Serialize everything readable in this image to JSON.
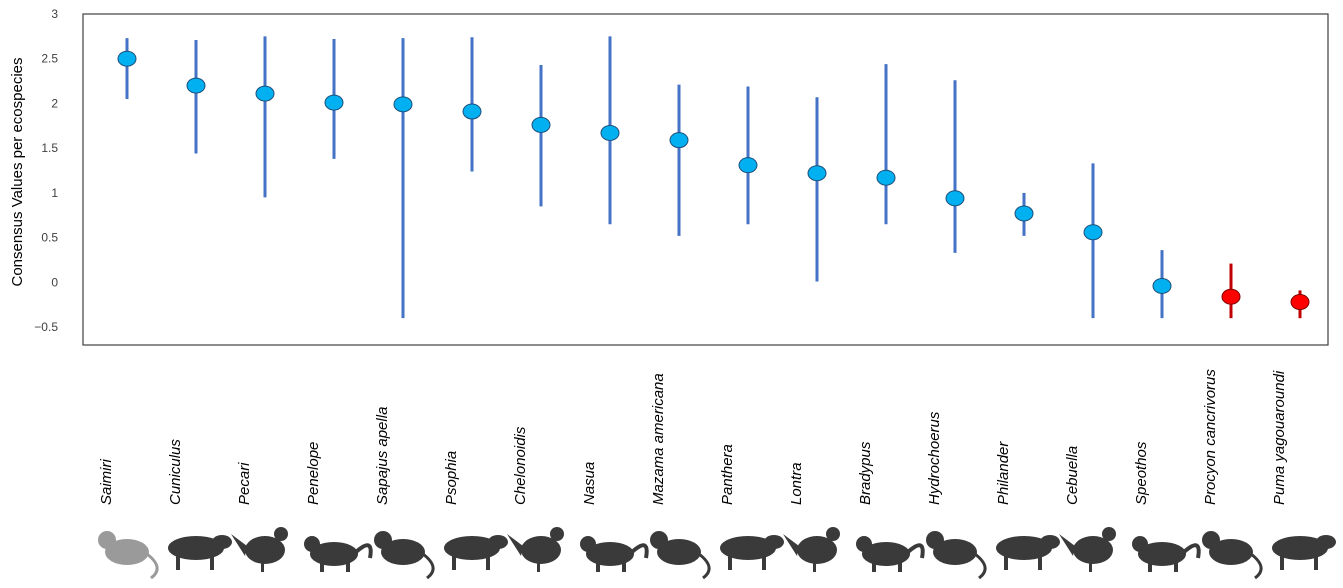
{
  "chart_data": {
    "type": "scatter",
    "title": "",
    "xlabel": "",
    "ylabel": "Consensus Values per ecospecies",
    "ylim": [
      -0.7,
      3
    ],
    "yticks": [
      3,
      2.5,
      2,
      1.5,
      1,
      0.5,
      0,
      -0.5
    ],
    "ytick_labels": [
      "3",
      "2.5",
      "2",
      "1.5",
      "1",
      "0.5",
      "0",
      "−0.5"
    ],
    "grid": false,
    "colors": {
      "default_marker": "#00B0F0",
      "default_bar": "#4472C4",
      "highlight_marker": "#FF0000",
      "highlight_bar": "#C00000",
      "marker_stroke": "#1F4E79"
    },
    "categories": [
      "Saimiri",
      "Cuniculus",
      "Pecari",
      "Penelope",
      "Sapajus apella",
      "Psophia",
      "Chelonoidis",
      "Nasua",
      "Mazama americana",
      "Panthera",
      "Lontra",
      "Bradypus",
      "Hydrochoerus",
      "Philander",
      "Cebuella",
      "Speothos",
      "Procyon cancrivorus",
      "Puma yagouaroundi"
    ],
    "series": [
      {
        "values": [
          2.5,
          2.2,
          2.11,
          2.01,
          1.99,
          1.91,
          1.76,
          1.67,
          1.59,
          1.31,
          1.22,
          1.17,
          0.94,
          0.77,
          0.56,
          -0.04,
          -0.16,
          -0.22
        ],
        "upper": [
          2.73,
          2.71,
          2.75,
          2.72,
          2.73,
          2.74,
          2.43,
          2.75,
          2.21,
          2.19,
          2.07,
          2.44,
          2.26,
          1.0,
          1.33,
          0.36,
          0.21,
          -0.09
        ],
        "lower": [
          2.05,
          1.44,
          0.95,
          1.38,
          -0.4,
          1.24,
          0.85,
          0.65,
          0.52,
          0.65,
          0.01,
          0.65,
          0.33,
          0.52,
          -0.4,
          -0.4,
          -0.4,
          -0.4
        ],
        "highlight": [
          false,
          false,
          false,
          false,
          false,
          false,
          false,
          false,
          false,
          false,
          false,
          false,
          false,
          false,
          false,
          false,
          true,
          true
        ]
      }
    ],
    "silhouette_icons": [
      "squirrel-monkey-icon",
      "paca-icon",
      "peccary-icon",
      "guan-bird-icon",
      "capuchin-monkey-icon",
      "trumpeter-bird-icon",
      "tortoise-icon",
      "coati-icon",
      "brocket-deer-icon",
      "jaguar-icon",
      "otter-icon",
      "sloth-icon",
      "capybara-icon",
      "opossum-icon",
      "marmoset-icon",
      "bush-dog-icon",
      "raccoon-icon",
      "jaguarundi-icon"
    ]
  }
}
